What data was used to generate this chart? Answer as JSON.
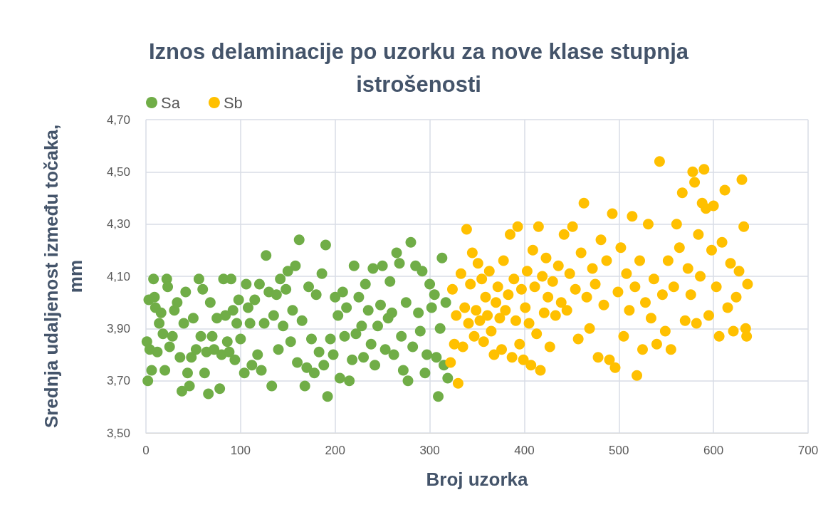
{
  "chart_data": {
    "type": "scatter",
    "title": "Iznos delaminacije po uzorku za nove klase stupnja istrošenosti",
    "xlabel": "Broj uzorka",
    "ylabel": "Srednja udaljenost između točaka, mm",
    "xlim": [
      0,
      700
    ],
    "xticks": [
      0,
      100,
      200,
      300,
      400,
      500,
      600,
      700
    ],
    "ylim": [
      3.5,
      4.7
    ],
    "yticks": [
      {
        "value": 3.5,
        "label": "3,50"
      },
      {
        "value": 3.7,
        "label": "3,70"
      },
      {
        "value": 3.9,
        "label": "3,90"
      },
      {
        "value": 4.1,
        "label": "4,10"
      },
      {
        "value": 4.3,
        "label": "4,30"
      },
      {
        "value": 4.5,
        "label": "4,50"
      },
      {
        "value": 4.7,
        "label": "4,70"
      }
    ],
    "grid": true,
    "legend": "top left",
    "marker": "circle",
    "series": [
      {
        "name": "Sa",
        "color": "#70ad47",
        "x": [
          1,
          2,
          3,
          4,
          6,
          8,
          9,
          10,
          12,
          14,
          16,
          18,
          20,
          22,
          23,
          25,
          28,
          30,
          33,
          36,
          38,
          40,
          42,
          44,
          46,
          48,
          50,
          53,
          56,
          58,
          60,
          62,
          64,
          66,
          68,
          70,
          72,
          75,
          78,
          80,
          82,
          84,
          86,
          88,
          90,
          92,
          94,
          96,
          98,
          100,
          104,
          106,
          108,
          110,
          112,
          115,
          118,
          120,
          122,
          125,
          127,
          130,
          133,
          135,
          138,
          140,
          142,
          145,
          148,
          150,
          153,
          155,
          158,
          160,
          162,
          165,
          168,
          170,
          172,
          175,
          178,
          180,
          183,
          186,
          188,
          190,
          192,
          195,
          198,
          200,
          203,
          205,
          208,
          210,
          212,
          215,
          218,
          220,
          222,
          225,
          228,
          230,
          232,
          235,
          238,
          240,
          242,
          245,
          248,
          250,
          253,
          256,
          258,
          260,
          262,
          265,
          268,
          270,
          272,
          275,
          277,
          280,
          282,
          285,
          288,
          290,
          292,
          295,
          297,
          300,
          302,
          305,
          307,
          309,
          311,
          313,
          315,
          317,
          319
        ],
        "values": [
          3.85,
          3.7,
          4.01,
          3.82,
          3.74,
          4.09,
          4.02,
          3.98,
          3.81,
          3.92,
          3.96,
          3.88,
          3.74,
          4.09,
          4.06,
          3.83,
          3.87,
          3.97,
          4.0,
          3.79,
          3.66,
          3.92,
          4.04,
          3.73,
          3.68,
          3.79,
          3.94,
          3.82,
          4.09,
          3.87,
          4.05,
          3.73,
          3.81,
          3.65,
          4.0,
          3.87,
          3.82,
          3.94,
          3.67,
          3.8,
          4.09,
          3.95,
          3.85,
          3.81,
          4.09,
          3.97,
          3.78,
          3.92,
          4.01,
          3.86,
          3.73,
          4.07,
          3.98,
          3.92,
          3.76,
          4.01,
          3.8,
          4.07,
          3.74,
          3.92,
          4.18,
          4.04,
          3.68,
          3.95,
          4.03,
          3.82,
          4.09,
          3.91,
          4.05,
          4.12,
          3.85,
          3.97,
          4.14,
          3.77,
          4.24,
          3.93,
          3.68,
          3.75,
          4.06,
          3.86,
          3.73,
          4.03,
          3.81,
          4.11,
          3.76,
          4.22,
          3.64,
          3.86,
          3.8,
          4.02,
          3.95,
          3.71,
          4.04,
          3.87,
          3.98,
          3.7,
          3.78,
          4.14,
          3.88,
          4.02,
          3.91,
          3.79,
          4.07,
          3.97,
          3.84,
          4.13,
          3.76,
          3.91,
          3.99,
          4.14,
          3.82,
          3.94,
          4.08,
          3.96,
          3.8,
          4.19,
          4.15,
          3.87,
          3.74,
          4.0,
          3.7,
          4.23,
          3.83,
          4.14,
          3.96,
          3.89,
          4.12,
          3.73,
          3.8,
          4.07,
          3.98,
          4.03,
          3.79,
          3.64,
          3.9,
          4.17,
          3.76,
          4.0,
          3.71
        ]
      },
      {
        "name": "Sb",
        "color": "#ffc000",
        "x": [
          322,
          324,
          326,
          328,
          330,
          333,
          335,
          337,
          339,
          341,
          343,
          345,
          347,
          349,
          351,
          353,
          355,
          357,
          359,
          361,
          363,
          365,
          368,
          370,
          372,
          374,
          376,
          378,
          380,
          383,
          385,
          387,
          389,
          391,
          393,
          395,
          397,
          399,
          401,
          403,
          405,
          407,
          409,
          411,
          413,
          415,
          417,
          419,
          421,
          423,
          425,
          427,
          430,
          433,
          436,
          439,
          442,
          445,
          448,
          451,
          454,
          457,
          460,
          463,
          466,
          469,
          472,
          475,
          478,
          481,
          484,
          487,
          490,
          493,
          496,
          499,
          502,
          505,
          508,
          511,
          514,
          517,
          519,
          522,
          525,
          528,
          531,
          534,
          537,
          540,
          543,
          546,
          549,
          552,
          555,
          558,
          561,
          564,
          567,
          570,
          573,
          576,
          578,
          580,
          582,
          584,
          586,
          588,
          590,
          592,
          595,
          598,
          600,
          603,
          606,
          609,
          612,
          615,
          618,
          621,
          624,
          627,
          630,
          632,
          634,
          635,
          636
        ],
        "values": [
          3.77,
          4.05,
          3.84,
          3.95,
          3.69,
          4.11,
          3.83,
          3.98,
          4.28,
          3.92,
          4.07,
          4.19,
          3.87,
          3.97,
          4.15,
          3.93,
          4.09,
          3.85,
          4.02,
          3.95,
          4.12,
          3.89,
          3.8,
          4.0,
          4.06,
          3.94,
          3.82,
          4.16,
          3.97,
          4.03,
          4.26,
          3.79,
          4.09,
          3.93,
          4.29,
          3.84,
          4.05,
          3.78,
          3.98,
          4.12,
          3.92,
          3.76,
          4.2,
          4.06,
          3.88,
          4.29,
          3.74,
          4.1,
          3.96,
          4.17,
          4.02,
          3.83,
          4.08,
          3.95,
          4.14,
          4.0,
          4.26,
          3.97,
          4.11,
          4.29,
          4.05,
          3.86,
          4.19,
          4.38,
          4.02,
          3.9,
          4.13,
          4.07,
          3.79,
          4.24,
          3.99,
          4.16,
          3.78,
          4.34,
          3.75,
          4.04,
          4.21,
          3.87,
          4.11,
          3.97,
          4.33,
          4.06,
          3.72,
          4.16,
          3.82,
          4.0,
          4.3,
          3.94,
          4.09,
          3.84,
          4.54,
          4.03,
          3.89,
          4.16,
          3.82,
          4.06,
          4.3,
          4.21,
          4.42,
          3.93,
          4.13,
          4.03,
          4.5,
          4.46,
          3.92,
          4.26,
          4.1,
          4.38,
          4.51,
          4.36,
          3.95,
          4.2,
          4.37,
          4.06,
          3.87,
          4.23,
          4.43,
          3.98,
          4.15,
          3.89,
          4.02,
          4.12,
          4.47,
          4.29,
          3.9,
          3.87,
          4.07
        ]
      }
    ]
  }
}
